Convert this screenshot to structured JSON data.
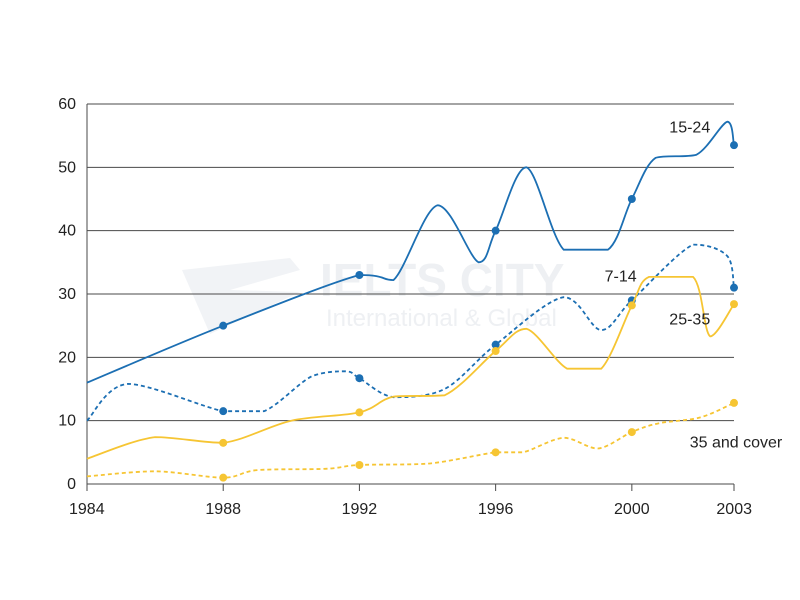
{
  "chart_data": {
    "type": "line",
    "title": "",
    "xlabel": "",
    "ylabel": "",
    "xlim": [
      1984,
      2003
    ],
    "ylim": [
      0,
      60
    ],
    "x_ticks": [
      1984,
      1988,
      1992,
      1996,
      2000,
      2003
    ],
    "y_ticks": [
      0,
      10,
      20,
      30,
      40,
      50,
      60
    ],
    "grid": "horizontal",
    "legend": "inline labels",
    "series": [
      {
        "name": "15-24",
        "color": "#1c6fb3",
        "style": "solid",
        "x": [
          1984,
          1988,
          1992,
          1993,
          1994.3,
          1995.5,
          1996,
          1996.9,
          1998,
          1999.3,
          2000,
          2000.7,
          2001.9,
          2002.8,
          2003
        ],
        "y": [
          16,
          25,
          33,
          32.2,
          44,
          35,
          40,
          50,
          37,
          37,
          45,
          51.5,
          52,
          57.2,
          53.5
        ],
        "markers": [
          [
            1988,
            25
          ],
          [
            1992,
            33
          ],
          [
            1996,
            40
          ],
          [
            2000,
            45
          ],
          [
            2003,
            53.5
          ]
        ]
      },
      {
        "name": "7-14",
        "color": "#1c6fb3",
        "style": "dashed",
        "x": [
          1984,
          1985.2,
          1988,
          1989.2,
          1990.6,
          1991.6,
          1992,
          1993,
          1994.5,
          1996,
          1998,
          1999.1,
          2000,
          2001.8,
          2002.8,
          2003
        ],
        "y": [
          10,
          15.8,
          11.5,
          11.5,
          17,
          17.8,
          16.7,
          13.7,
          15,
          22,
          29.5,
          24.3,
          29,
          37.8,
          36,
          31
        ],
        "markers": [
          [
            1988,
            11.5
          ],
          [
            1992,
            16.7
          ],
          [
            1996,
            22
          ],
          [
            2000,
            29
          ],
          [
            2003,
            31
          ]
        ]
      },
      {
        "name": "25-35",
        "color": "#f6c533",
        "style": "solid",
        "x": [
          1984,
          1986,
          1988,
          1990,
          1992,
          1993,
          1994.5,
          1996,
          1996.9,
          1998.1,
          1999.1,
          2000,
          2000.5,
          2001.8,
          2002.3,
          2003
        ],
        "y": [
          4,
          7.4,
          6.5,
          10,
          11.3,
          13.8,
          14,
          21,
          24.5,
          18.2,
          18.2,
          28.2,
          32.7,
          32.7,
          23.3,
          28.4
        ],
        "markers": [
          [
            1988,
            6.5
          ],
          [
            1992,
            11.3
          ],
          [
            1996,
            21
          ],
          [
            2000,
            28.2
          ],
          [
            2003,
            28.4
          ]
        ]
      },
      {
        "name": "35 and cover",
        "color": "#f6c533",
        "style": "dashed",
        "x": [
          1984,
          1986,
          1988,
          1989,
          1991,
          1992,
          1994,
          1996,
          1996.8,
          1998,
          1999,
          2000,
          2000.8,
          2002,
          2003
        ],
        "y": [
          1.2,
          2,
          1,
          2.2,
          2.4,
          3,
          3.2,
          5,
          5,
          7.3,
          5.6,
          8.2,
          9.6,
          10.5,
          12.8
        ],
        "markers": [
          [
            1988,
            1
          ],
          [
            1992,
            3
          ],
          [
            1996,
            5
          ],
          [
            2000,
            8.2
          ],
          [
            2003,
            12.8
          ]
        ]
      }
    ],
    "annotations": [
      {
        "text": "15-24",
        "x": 2001.1,
        "y": 55.5
      },
      {
        "text": "7-14",
        "x": 1999.2,
        "y": 32
      },
      {
        "text": "25-35",
        "x": 2001.1,
        "y": 25.2
      },
      {
        "text": "35 and cover",
        "x": 2001.7,
        "y": 5.8
      }
    ]
  }
}
